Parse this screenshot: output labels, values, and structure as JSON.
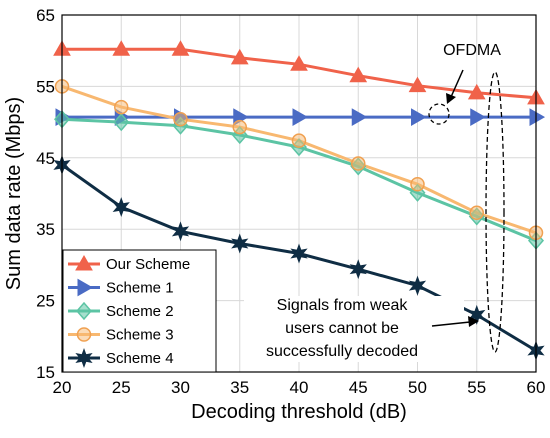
{
  "chart_data": {
    "type": "line",
    "xlabel": "Decoding threshold (dB)",
    "ylabel": "Sum data rate (Mbps)",
    "xlim": [
      20,
      60
    ],
    "ylim": [
      15,
      65
    ],
    "xticks": [
      "20",
      "25",
      "30",
      "35",
      "40",
      "45",
      "50",
      "55",
      "60"
    ],
    "yticks": [
      "15",
      "25",
      "35",
      "45",
      "55",
      "65"
    ],
    "grid": true,
    "legend_position": "bottom-left",
    "x": [
      20,
      25,
      30,
      35,
      40,
      45,
      50,
      55,
      60
    ],
    "series": [
      {
        "name": "Our Scheme",
        "marker": "triangle-up",
        "color": "#f0624a",
        "values": [
          60.2,
          60.2,
          60.2,
          59.0,
          58.1,
          56.5,
          55.1,
          54.1,
          53.4
        ]
      },
      {
        "name": "Scheme 1",
        "marker": "triangle-right",
        "color": "#4a6bc4",
        "values": [
          50.7,
          50.7,
          50.7,
          50.7,
          50.7,
          50.7,
          50.7,
          50.7,
          50.7
        ]
      },
      {
        "name": "Scheme 2",
        "marker": "diamond",
        "color": "#5cc4a4",
        "values": [
          50.4,
          50.0,
          49.5,
          48.2,
          46.5,
          43.8,
          40.1,
          36.8,
          33.4
        ]
      },
      {
        "name": "Scheme 3",
        "marker": "circle",
        "color": "#f8b870",
        "values": [
          55.0,
          52.1,
          50.4,
          49.3,
          47.4,
          44.2,
          41.3,
          37.3,
          34.5
        ]
      },
      {
        "name": "Scheme 4",
        "marker": "star",
        "color": "#0f2d44",
        "values": [
          44.0,
          38.1,
          34.7,
          33.0,
          31.6,
          29.4,
          27.1,
          23.0,
          18.0
        ]
      }
    ],
    "annotations": {
      "ofdma": "OFDMA",
      "weak_line1": "Signals from weak",
      "weak_line2": "users cannot be",
      "weak_line3": "successfully decoded"
    }
  }
}
